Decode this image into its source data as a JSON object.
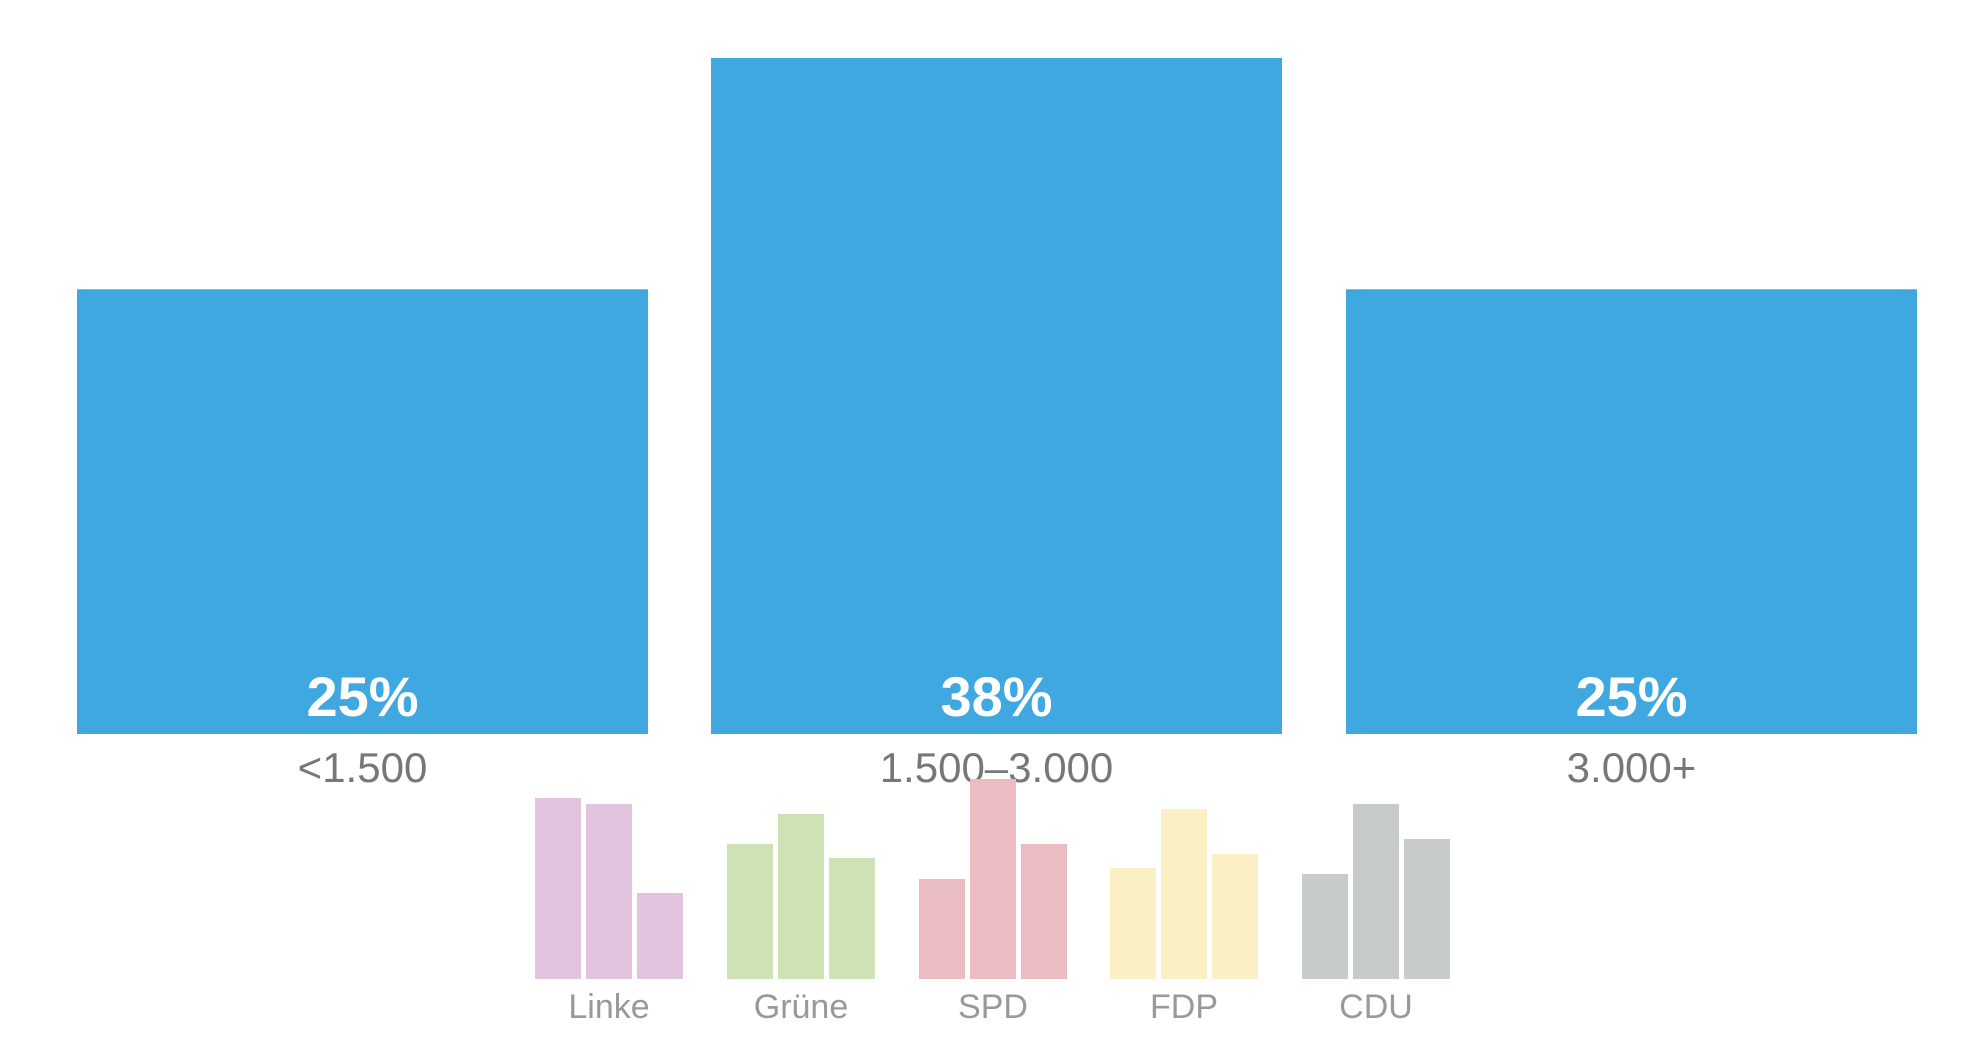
{
  "chart_data": [
    {
      "type": "bar",
      "categories": [
        "<1.500",
        "1.500–3.000",
        "3.000+"
      ],
      "values": [
        25,
        38,
        25
      ],
      "data_labels": [
        "25%",
        "38%",
        "25%"
      ],
      "ylim": [
        0,
        38
      ],
      "grid": false,
      "colors": {
        "bar": "#3FA8E0",
        "value_label": "#FFFFFF",
        "category_label": "#777777"
      }
    },
    {
      "type": "bar",
      "note_scale": "relative heights, no axis printed",
      "groups": [
        {
          "name": "Linke",
          "color": "#E3C4DF",
          "values": [
            181,
            175,
            86
          ]
        },
        {
          "name": "Grüne",
          "color": "#CDE3B5",
          "values": [
            135,
            165,
            121
          ]
        },
        {
          "name": "SPD",
          "color": "#EBBCC2",
          "values": [
            100,
            200,
            135
          ]
        },
        {
          "name": "FDP",
          "color": "#FBF0C4",
          "values": [
            111,
            170,
            125
          ]
        },
        {
          "name": "CDU",
          "color": "#C8CBCC",
          "values": [
            105,
            175,
            140
          ]
        }
      ],
      "label_color": "#999999"
    }
  ]
}
